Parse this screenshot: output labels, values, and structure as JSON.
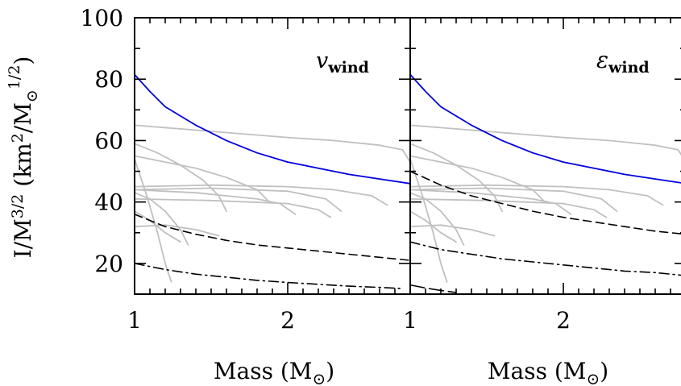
{
  "chart_data": [
    {
      "type": "line",
      "panel_label": "v",
      "panel_label_sub": "wind",
      "xlabel": "Mass (M",
      "xlabel_sym": "⊙",
      "xlabel_close": ")",
      "ylabel": "I/M",
      "ylabel_exp": "3/2",
      "ylabel_unit_open": " (km",
      "ylabel_unit_exp": "2",
      "ylabel_unit_mid": "/M",
      "ylabel_unit_sym": "⊙",
      "ylabel_unit_exp2": "1/2",
      "ylabel_unit_close": ")",
      "xlim": [
        1.0,
        2.8
      ],
      "ylim": [
        10,
        100
      ],
      "xticks": [
        1,
        2
      ],
      "xtick_labels": [
        "1",
        "2"
      ],
      "yticks": [
        20,
        40,
        60,
        80,
        100
      ],
      "ytick_labels": [
        "20",
        "40",
        "60",
        "80",
        "100"
      ],
      "series": [
        {
          "style": "solid",
          "color": "#0000dd",
          "x": [
            1.0,
            1.1,
            1.2,
            1.4,
            1.6,
            1.8,
            2.0,
            2.2,
            2.4,
            2.6,
            2.8
          ],
          "y": [
            81.5,
            76,
            71,
            65,
            60,
            56,
            53,
            51,
            49,
            47.5,
            46
          ]
        },
        {
          "style": "dashed",
          "color": "#000000",
          "x": [
            1.0,
            1.2,
            1.4,
            1.6,
            1.8,
            2.0,
            2.2,
            2.4,
            2.6,
            2.8
          ],
          "y": [
            36,
            32,
            29.5,
            27.5,
            26,
            25,
            24,
            23,
            22,
            21
          ]
        },
        {
          "style": "dashdot",
          "color": "#000000",
          "x": [
            1.0,
            1.2,
            1.4,
            1.6,
            1.8,
            2.0,
            2.2,
            2.4,
            2.6,
            2.75
          ],
          "y": [
            20,
            18,
            16.5,
            15.5,
            14.5,
            13.8,
            13.2,
            12.6,
            12.2,
            11.8
          ]
        },
        {
          "style": "gray",
          "color": "#c0c0c0",
          "x": [
            1.0,
            1.5,
            2.0,
            2.3,
            2.6,
            2.75,
            2.8
          ],
          "y": [
            65,
            63,
            61,
            60,
            58.5,
            57,
            53
          ]
        },
        {
          "style": "gray",
          "color": "#c0c0c0",
          "x": [
            1.0,
            1.15,
            1.3,
            1.45,
            1.55,
            1.6
          ],
          "y": [
            59,
            56,
            52,
            47,
            42,
            37
          ]
        },
        {
          "style": "gray",
          "color": "#c0c0c0",
          "x": [
            1.0,
            1.2,
            1.4,
            1.6,
            1.8,
            1.88
          ],
          "y": [
            55,
            53,
            51,
            48,
            44,
            40
          ]
        },
        {
          "style": "gray",
          "color": "#c0c0c0",
          "x": [
            1.0,
            1.5,
            2.0,
            2.3,
            2.55,
            2.65
          ],
          "y": [
            45,
            45.5,
            45,
            44,
            42,
            39
          ]
        },
        {
          "style": "gray",
          "color": "#c0c0c0",
          "x": [
            1.0,
            1.5,
            2.0,
            2.25,
            2.35
          ],
          "y": [
            44,
            44.5,
            43.5,
            41,
            37
          ]
        },
        {
          "style": "gray",
          "color": "#c0c0c0",
          "x": [
            1.0,
            1.5,
            2.0,
            2.2,
            2.28
          ],
          "y": [
            41,
            40.5,
            39.5,
            37.5,
            35
          ]
        },
        {
          "style": "gray",
          "color": "#c0c0c0",
          "x": [
            1.0,
            1.2,
            1.4,
            1.6,
            1.8,
            1.95,
            2.05
          ],
          "y": [
            44,
            43.5,
            43,
            42,
            41,
            39.5,
            36
          ]
        },
        {
          "style": "gray",
          "color": "#c0c0c0",
          "x": [
            1.0,
            1.1,
            1.2,
            1.3,
            1.35
          ],
          "y": [
            43,
            41,
            37,
            31,
            26
          ]
        },
        {
          "style": "gray",
          "color": "#c0c0c0",
          "x": [
            1.0,
            1.1,
            1.2,
            1.3
          ],
          "y": [
            37,
            34,
            30,
            27
          ]
        },
        {
          "style": "gray",
          "color": "#c0c0c0",
          "x": [
            1.0,
            1.08,
            1.15,
            1.2,
            1.24
          ],
          "y": [
            54,
            42,
            30,
            20,
            14
          ]
        },
        {
          "style": "gray",
          "color": "#c0c0c0",
          "x": [
            1.0,
            1.2,
            1.4,
            1.55
          ],
          "y": [
            32,
            32.5,
            31,
            29
          ]
        }
      ]
    },
    {
      "type": "line",
      "panel_label": "ε",
      "panel_label_sub": "wind",
      "xlabel": "Mass (M",
      "xlabel_sym": "⊙",
      "xlabel_close": ")",
      "xlim": [
        1.0,
        2.8
      ],
      "ylim": [
        10,
        100
      ],
      "xticks": [
        1,
        2
      ],
      "xtick_labels": [
        "1",
        "2"
      ],
      "yticks": [
        20,
        40,
        60,
        80,
        100
      ],
      "series": [
        {
          "style": "solid",
          "color": "#0000dd",
          "x": [
            1.0,
            1.1,
            1.2,
            1.4,
            1.6,
            1.8,
            2.0,
            2.2,
            2.4,
            2.6,
            2.8
          ],
          "y": [
            81.5,
            76,
            71,
            65,
            60,
            56,
            53,
            51,
            49,
            47.5,
            46
          ]
        },
        {
          "style": "dashed",
          "color": "#000000",
          "x": [
            1.0,
            1.2,
            1.4,
            1.6,
            1.8,
            2.0,
            2.2,
            2.4,
            2.6,
            2.8
          ],
          "y": [
            50,
            45.5,
            42,
            39.5,
            37,
            35,
            33.5,
            32,
            30.5,
            29.5
          ]
        },
        {
          "style": "dashdot",
          "color": "#000000",
          "x": [
            1.0,
            1.2,
            1.4,
            1.6,
            1.8,
            2.0,
            2.2,
            2.4,
            2.6,
            2.8
          ],
          "y": [
            27,
            24.5,
            23,
            21.5,
            20.5,
            19.5,
            18.5,
            17.5,
            17,
            16
          ]
        },
        {
          "style": "longdash",
          "color": "#000000",
          "x": [
            1.0,
            1.1,
            1.2,
            1.3
          ],
          "y": [
            13,
            12,
            11.2,
            10.5
          ]
        },
        {
          "style": "gray",
          "color": "#c0c0c0",
          "x": [
            1.0,
            1.5,
            2.0,
            2.3,
            2.6,
            2.75,
            2.8
          ],
          "y": [
            65,
            63,
            61,
            60,
            58.5,
            57,
            53
          ]
        },
        {
          "style": "gray",
          "color": "#c0c0c0",
          "x": [
            1.0,
            1.15,
            1.3,
            1.45,
            1.55,
            1.6
          ],
          "y": [
            59,
            56,
            52,
            47,
            42,
            37
          ]
        },
        {
          "style": "gray",
          "color": "#c0c0c0",
          "x": [
            1.0,
            1.2,
            1.4,
            1.6,
            1.8,
            1.88
          ],
          "y": [
            55,
            53,
            51,
            48,
            44,
            40
          ]
        },
        {
          "style": "gray",
          "color": "#c0c0c0",
          "x": [
            1.0,
            1.5,
            2.0,
            2.3,
            2.55,
            2.65
          ],
          "y": [
            45,
            45.5,
            45,
            44,
            42,
            39
          ]
        },
        {
          "style": "gray",
          "color": "#c0c0c0",
          "x": [
            1.0,
            1.5,
            2.0,
            2.25,
            2.35
          ],
          "y": [
            44,
            44.5,
            43.5,
            41,
            37
          ]
        },
        {
          "style": "gray",
          "color": "#c0c0c0",
          "x": [
            1.0,
            1.5,
            2.0,
            2.2,
            2.28
          ],
          "y": [
            41,
            40.5,
            39.5,
            37.5,
            35
          ]
        },
        {
          "style": "gray",
          "color": "#c0c0c0",
          "x": [
            1.0,
            1.2,
            1.4,
            1.6,
            1.8,
            1.95,
            2.05
          ],
          "y": [
            44,
            43.5,
            43,
            42,
            41,
            39.5,
            36
          ]
        },
        {
          "style": "gray",
          "color": "#c0c0c0",
          "x": [
            1.0,
            1.1,
            1.2,
            1.3,
            1.35
          ],
          "y": [
            43,
            41,
            37,
            31,
            26
          ]
        },
        {
          "style": "gray",
          "color": "#c0c0c0",
          "x": [
            1.0,
            1.1,
            1.2,
            1.3
          ],
          "y": [
            37,
            34,
            30,
            27
          ]
        },
        {
          "style": "gray",
          "color": "#c0c0c0",
          "x": [
            1.0,
            1.08,
            1.15,
            1.2,
            1.24
          ],
          "y": [
            54,
            42,
            30,
            20,
            14
          ]
        },
        {
          "style": "gray",
          "color": "#c0c0c0",
          "x": [
            1.0,
            1.2,
            1.4,
            1.55
          ],
          "y": [
            32,
            32.5,
            31,
            29
          ]
        }
      ]
    }
  ]
}
